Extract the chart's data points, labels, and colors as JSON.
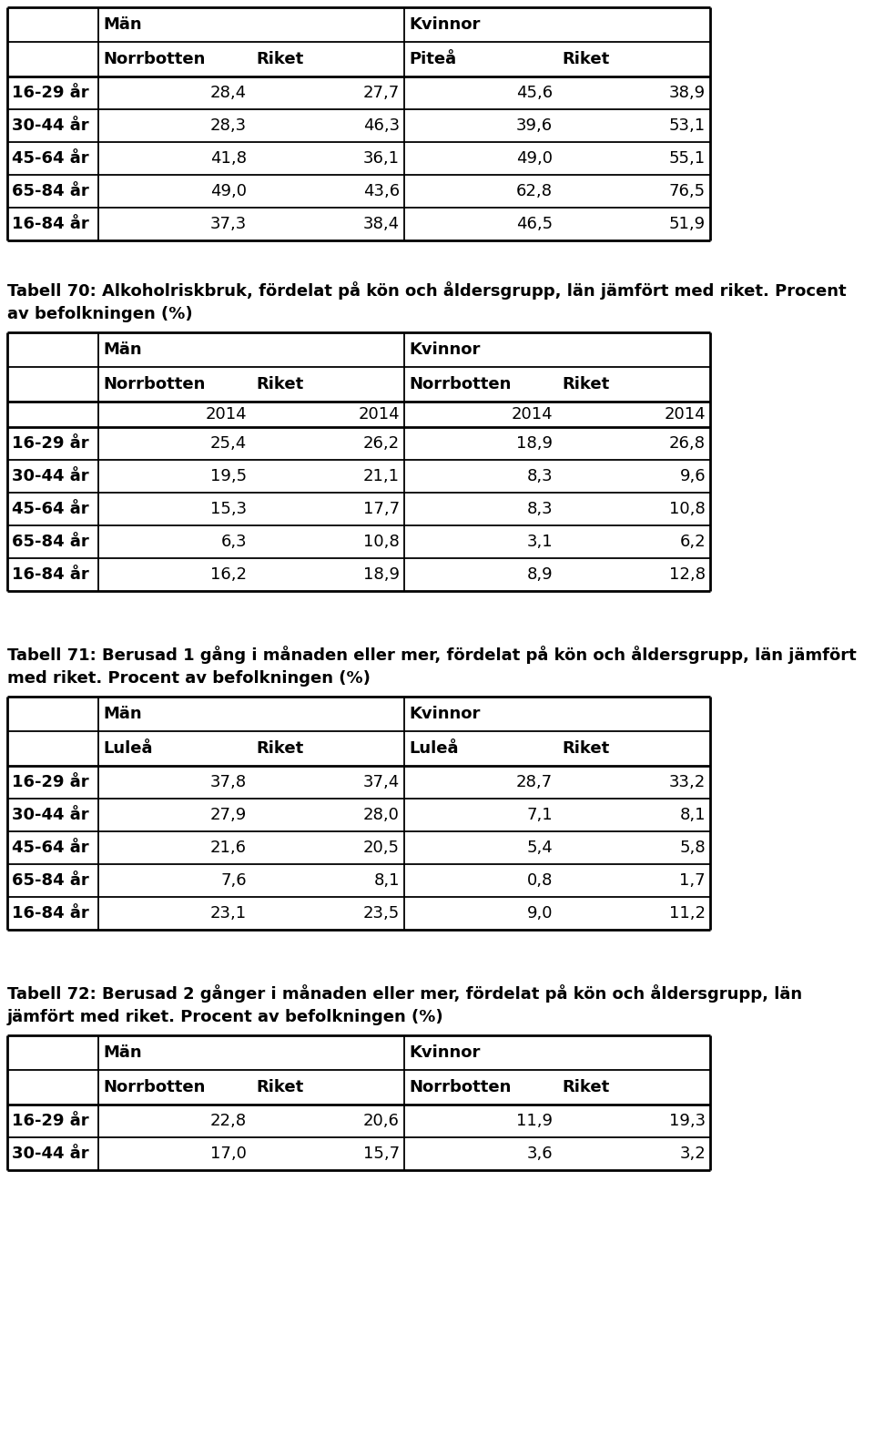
{
  "table1": {
    "group_headers": [
      "Män",
      "Kvinnor"
    ],
    "sub_headers": [
      "Norrbotten",
      "Riket",
      "Piteå",
      "Riket"
    ],
    "rows": [
      [
        "16-29 år",
        "28,4",
        "27,7",
        "45,6",
        "38,9"
      ],
      [
        "30-44 år",
        "28,3",
        "46,3",
        "39,6",
        "53,1"
      ],
      [
        "45-64 år",
        "41,8",
        "36,1",
        "49,0",
        "55,1"
      ],
      [
        "65-84 år",
        "49,0",
        "43,6",
        "62,8",
        "76,5"
      ],
      [
        "16-84 år",
        "37,3",
        "38,4",
        "46,5",
        "51,9"
      ]
    ]
  },
  "table2": {
    "caption_line1": "Tabell 70: Alkoholriskbruk, fördelat på kön och åldersgrupp, län jämfört med riket. Procent",
    "caption_line2": "av befolkningen (%)",
    "group_headers": [
      "Män",
      "Kvinnor"
    ],
    "sub_headers": [
      "Norrbotten",
      "Riket",
      "Norrbotten",
      "Riket"
    ],
    "year_row": [
      "2014",
      "2014",
      "2014",
      "2014"
    ],
    "rows": [
      [
        "16-29 år",
        "25,4",
        "26,2",
        "18,9",
        "26,8"
      ],
      [
        "30-44 år",
        "19,5",
        "21,1",
        "8,3",
        "9,6"
      ],
      [
        "45-64 år",
        "15,3",
        "17,7",
        "8,3",
        "10,8"
      ],
      [
        "65-84 år",
        "6,3",
        "10,8",
        "3,1",
        "6,2"
      ],
      [
        "16-84 år",
        "16,2",
        "18,9",
        "8,9",
        "12,8"
      ]
    ]
  },
  "table3": {
    "caption_line1": "Tabell 71: Berusad 1 gång i månaden eller mer, fördelat på kön och åldersgrupp, län jämfört",
    "caption_line2": "med riket. Procent av befolkningen (%)",
    "group_headers": [
      "Män",
      "Kvinnor"
    ],
    "sub_headers": [
      "Luleå",
      "Riket",
      "Luleå",
      "Riket"
    ],
    "rows": [
      [
        "16-29 år",
        "37,8",
        "37,4",
        "28,7",
        "33,2"
      ],
      [
        "30-44 år",
        "27,9",
        "28,0",
        "7,1",
        "8,1"
      ],
      [
        "45-64 år",
        "21,6",
        "20,5",
        "5,4",
        "5,8"
      ],
      [
        "65-84 år",
        "7,6",
        "8,1",
        "0,8",
        "1,7"
      ],
      [
        "16-84 år",
        "23,1",
        "23,5",
        "9,0",
        "11,2"
      ]
    ]
  },
  "table4": {
    "caption_line1": "Tabell 72: Berusad 2 gånger i månaden eller mer, fördelat på kön och åldersgrupp, län",
    "caption_line2": "jämfört med riket. Procent av befolkningen (%)",
    "group_headers": [
      "Män",
      "Kvinnor"
    ],
    "sub_headers": [
      "Norrbotten",
      "Riket",
      "Norrbotten",
      "Riket"
    ],
    "rows": [
      [
        "16-29 år",
        "22,8",
        "20,6",
        "11,9",
        "19,3"
      ],
      [
        "30-44 år",
        "17,0",
        "15,7",
        "3,6",
        "3,2"
      ]
    ]
  },
  "bg_color": "#ffffff",
  "text_color": "#000000",
  "font_size": 13
}
